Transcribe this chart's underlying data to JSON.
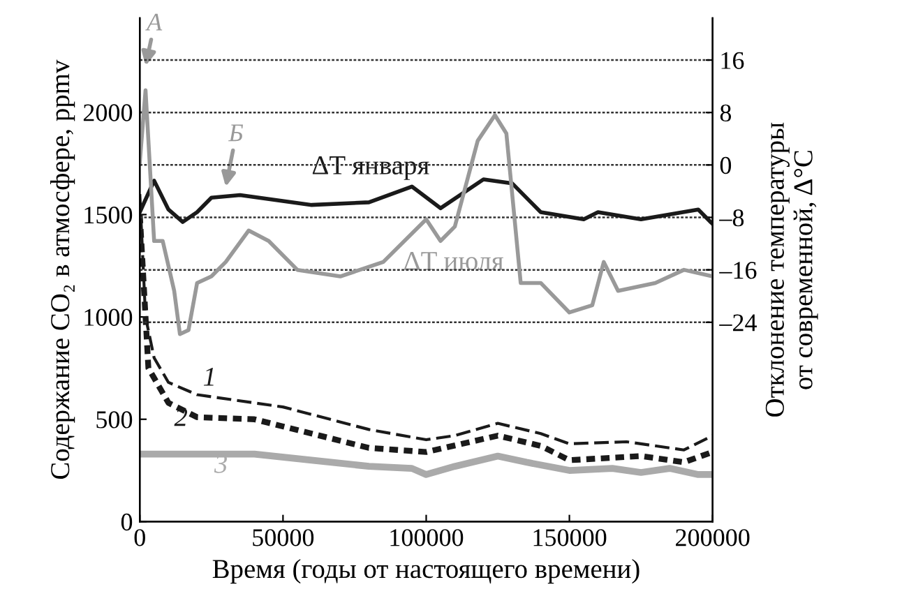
{
  "chart_data": {
    "type": "line",
    "xlabel": "Время (годы от настоящего времени)",
    "ylabel": "Содержание CO₂ в атмосфере, ppmv",
    "y2label": "Отклонение температуры\nот современной, Δ°C",
    "xlim": [
      0,
      200000
    ],
    "xticks": [
      0,
      50000,
      100000,
      150000,
      200000
    ],
    "ylim": [
      0,
      2460
    ],
    "yticks": [
      0,
      500,
      1000,
      1500,
      2000
    ],
    "y2lim": [
      -54.4,
      22.4
    ],
    "y2ticks": [
      16,
      8,
      0,
      {
        "value": -8,
        "label": "–8"
      },
      {
        "value": -16,
        "label": "–16"
      },
      {
        "value": -24,
        "label": "–24"
      }
    ],
    "legend": false,
    "grid": false,
    "marker": "none",
    "series": [
      {
        "name": "ΔT января",
        "color": "#1a1a1a",
        "axis": "y2",
        "line_style": "solid",
        "x": [
          0,
          5000,
          10000,
          15000,
          20000,
          25000,
          35000,
          60000,
          80000,
          95000,
          105000,
          120000,
          130000,
          140000,
          155000,
          160000,
          175000,
          195000,
          200000
        ],
        "values": [
          -7.2,
          -2.4,
          -6.8,
          -8.7,
          -7.2,
          -5,
          -4.6,
          -6.1,
          -5.7,
          -3.3,
          -6.6,
          -2.2,
          -2.8,
          -7.2,
          -8.3,
          -7.2,
          -8.3,
          -6.8,
          -9
        ]
      },
      {
        "name": "ΔT июля",
        "color": "#999999",
        "axis": "y2",
        "line_style": "solid",
        "x": [
          0,
          2000,
          5000,
          8000,
          12000,
          14000,
          17000,
          20000,
          25000,
          30000,
          38000,
          45000,
          55000,
          70000,
          85000,
          100000,
          105000,
          110000,
          118000,
          124000,
          128000,
          133000,
          140000,
          150000,
          158000,
          162000,
          167000,
          180000,
          190000,
          200000
        ],
        "values": [
          0.4,
          11.4,
          -11.6,
          -11.6,
          -19.2,
          -25.8,
          -25.2,
          -18,
          -17,
          -14.8,
          -10,
          -11.6,
          -16,
          -17,
          -14.8,
          -8.3,
          -11.6,
          -9.4,
          3.7,
          7.6,
          4.8,
          -18,
          -18,
          -22.5,
          -21.4,
          -14.8,
          -19.2,
          -18,
          -16,
          -17
        ]
      },
      {
        "name": "1",
        "color": "#1a1a1a",
        "line_style": "dashed",
        "x": [
          0,
          2000,
          5000,
          10000,
          20000,
          50000,
          80000,
          100000,
          110000,
          125000,
          140000,
          150000,
          170000,
          190000,
          200000
        ],
        "values": [
          1600,
          1000,
          800,
          680,
          620,
          560,
          450,
          400,
          420,
          480,
          430,
          380,
          390,
          350,
          420
        ]
      },
      {
        "name": "2",
        "color": "#1a1a1a",
        "line_style": "dotted",
        "x": [
          0,
          3000,
          10000,
          20000,
          40000,
          60000,
          80000,
          100000,
          125000,
          140000,
          150000,
          175000,
          190000,
          200000
        ],
        "values": [
          1500,
          750,
          580,
          510,
          500,
          430,
          360,
          340,
          420,
          370,
          300,
          320,
          290,
          340
        ]
      },
      {
        "name": "3",
        "color": "#aaaaaa",
        "line_style": "solid",
        "x": [
          0,
          40000,
          60000,
          80000,
          95000,
          100000,
          110000,
          125000,
          135000,
          150000,
          165000,
          175000,
          185000,
          195000,
          200000
        ],
        "values": [
          330,
          330,
          300,
          270,
          260,
          230,
          270,
          320,
          290,
          250,
          260,
          240,
          260,
          230,
          230
        ]
      }
    ],
    "ref_lines": [
      {
        "axis": "y2",
        "value": 16,
        "line_style": "dotted",
        "color": "#333333"
      },
      {
        "axis": "y2",
        "value": 8,
        "line_style": "dotted",
        "color": "#333333"
      },
      {
        "axis": "y2",
        "value": 0,
        "line_style": "dotted",
        "color": "#333333"
      },
      {
        "axis": "y2",
        "value": -8,
        "line_style": "dotted",
        "color": "#333333"
      },
      {
        "axis": "y2",
        "value": -16,
        "line_style": "dotted",
        "color": "#333333"
      },
      {
        "axis": "y2",
        "value": -24,
        "line_style": "dotted",
        "color": "#333333"
      }
    ],
    "annotations": [
      "A",
      "Б"
    ]
  }
}
